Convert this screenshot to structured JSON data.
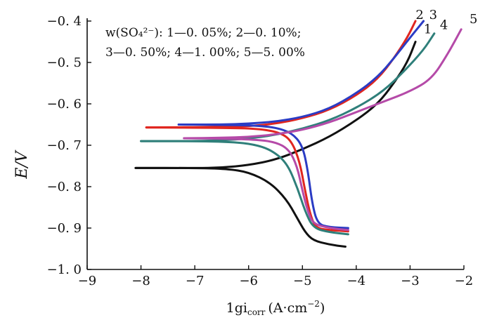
{
  "chart_data": {
    "type": "line",
    "xlabel": {
      "main": "1gi",
      "subscript": "corr",
      "unit": "(A·cm",
      "unit_sup": "−2",
      "unit_end": ")"
    },
    "ylabel": "E/V",
    "xlim": [
      -9,
      -2
    ],
    "ylim": [
      -1.0,
      -0.4
    ],
    "x_ticks": [
      -9,
      -8,
      -7,
      -6,
      -5,
      -4,
      -3,
      -2
    ],
    "x_tick_labels": [
      "−9",
      "−8",
      "−7",
      "−6",
      "−5",
      "−4",
      "−3",
      "−2"
    ],
    "y_ticks": [
      -1.0,
      -0.9,
      -0.8,
      -0.7,
      -0.6,
      -0.5,
      -0.4
    ],
    "y_tick_labels": [
      "−1. 0",
      "−0. 9",
      "−0. 8",
      "−0. 7",
      "−0. 6",
      "−0. 5",
      "−0. 4"
    ],
    "grid": false,
    "legend_lines": [
      "w(SO₄²⁻): 1—0. 05%; 2—0. 10%;",
      "3—0. 50%; 4—1. 00%; 5—5. 00%"
    ],
    "series": [
      {
        "name": "1",
        "color": "#111111",
        "anodic": [
          [
            -8.1,
            -0.755
          ],
          [
            -7.0,
            -0.755
          ],
          [
            -6.5,
            -0.754
          ],
          [
            -6.0,
            -0.748
          ],
          [
            -5.5,
            -0.735
          ],
          [
            -5.0,
            -0.71
          ],
          [
            -4.5,
            -0.68
          ],
          [
            -4.0,
            -0.64
          ],
          [
            -3.6,
            -0.6
          ],
          [
            -3.3,
            -0.55
          ],
          [
            -3.05,
            -0.5
          ],
          [
            -2.9,
            -0.45
          ]
        ],
        "cathodic": [
          [
            -8.1,
            -0.755
          ],
          [
            -7.0,
            -0.755
          ],
          [
            -6.4,
            -0.757
          ],
          [
            -6.0,
            -0.765
          ],
          [
            -5.6,
            -0.79
          ],
          [
            -5.3,
            -0.83
          ],
          [
            -5.1,
            -0.875
          ],
          [
            -4.95,
            -0.91
          ],
          [
            -4.8,
            -0.93
          ],
          [
            -4.5,
            -0.94
          ],
          [
            -4.2,
            -0.945
          ]
        ]
      },
      {
        "name": "2",
        "color": "#e0261f",
        "anodic": [
          [
            -7.9,
            -0.657
          ],
          [
            -6.5,
            -0.656
          ],
          [
            -6.0,
            -0.654
          ],
          [
            -5.5,
            -0.648
          ],
          [
            -5.0,
            -0.635
          ],
          [
            -4.5,
            -0.615
          ],
          [
            -4.0,
            -0.58
          ],
          [
            -3.6,
            -0.54
          ],
          [
            -3.3,
            -0.49
          ],
          [
            -3.05,
            -0.44
          ],
          [
            -2.9,
            -0.4
          ]
        ],
        "cathodic": [
          [
            -7.9,
            -0.657
          ],
          [
            -6.5,
            -0.658
          ],
          [
            -5.8,
            -0.66
          ],
          [
            -5.4,
            -0.67
          ],
          [
            -5.2,
            -0.69
          ],
          [
            -5.05,
            -0.74
          ],
          [
            -4.95,
            -0.81
          ],
          [
            -4.85,
            -0.87
          ],
          [
            -4.75,
            -0.9
          ],
          [
            -4.5,
            -0.905
          ],
          [
            -4.15,
            -0.908
          ]
        ]
      },
      {
        "name": "3",
        "color": "#2b3cc4",
        "anodic": [
          [
            -7.3,
            -0.65
          ],
          [
            -6.5,
            -0.65
          ],
          [
            -6.0,
            -0.648
          ],
          [
            -5.5,
            -0.643
          ],
          [
            -5.0,
            -0.632
          ],
          [
            -4.5,
            -0.612
          ],
          [
            -4.0,
            -0.575
          ],
          [
            -3.6,
            -0.535
          ],
          [
            -3.3,
            -0.49
          ],
          [
            -3.0,
            -0.44
          ],
          [
            -2.75,
            -0.4
          ]
        ],
        "cathodic": [
          [
            -7.3,
            -0.65
          ],
          [
            -6.5,
            -0.651
          ],
          [
            -5.9,
            -0.652
          ],
          [
            -5.5,
            -0.657
          ],
          [
            -5.2,
            -0.67
          ],
          [
            -5.0,
            -0.7
          ],
          [
            -4.9,
            -0.76
          ],
          [
            -4.82,
            -0.84
          ],
          [
            -4.72,
            -0.89
          ],
          [
            -4.5,
            -0.898
          ],
          [
            -4.15,
            -0.9
          ]
        ]
      },
      {
        "name": "4",
        "color": "#2f7f7a",
        "anodic": [
          [
            -8.0,
            -0.69
          ],
          [
            -7.0,
            -0.69
          ],
          [
            -6.5,
            -0.688
          ],
          [
            -6.0,
            -0.684
          ],
          [
            -5.5,
            -0.675
          ],
          [
            -5.0,
            -0.66
          ],
          [
            -4.5,
            -0.64
          ],
          [
            -4.0,
            -0.61
          ],
          [
            -3.5,
            -0.57
          ],
          [
            -3.1,
            -0.52
          ],
          [
            -2.75,
            -0.47
          ],
          [
            -2.55,
            -0.43
          ]
        ],
        "cathodic": [
          [
            -8.0,
            -0.69
          ],
          [
            -7.0,
            -0.69
          ],
          [
            -6.3,
            -0.692
          ],
          [
            -5.9,
            -0.698
          ],
          [
            -5.6,
            -0.71
          ],
          [
            -5.3,
            -0.74
          ],
          [
            -5.1,
            -0.8
          ],
          [
            -4.95,
            -0.86
          ],
          [
            -4.8,
            -0.9
          ],
          [
            -4.5,
            -0.91
          ],
          [
            -4.15,
            -0.915
          ]
        ]
      },
      {
        "name": "5",
        "color": "#b54aa8",
        "anodic": [
          [
            -7.2,
            -0.683
          ],
          [
            -6.5,
            -0.682
          ],
          [
            -6.0,
            -0.68
          ],
          [
            -5.5,
            -0.674
          ],
          [
            -5.0,
            -0.663
          ],
          [
            -4.5,
            -0.645
          ],
          [
            -4.0,
            -0.62
          ],
          [
            -3.5,
            -0.595
          ],
          [
            -3.0,
            -0.57
          ],
          [
            -2.6,
            -0.54
          ],
          [
            -2.3,
            -0.48
          ],
          [
            -2.05,
            -0.42
          ]
        ],
        "cathodic": [
          [
            -7.2,
            -0.683
          ],
          [
            -6.5,
            -0.684
          ],
          [
            -5.9,
            -0.686
          ],
          [
            -5.5,
            -0.692
          ],
          [
            -5.25,
            -0.71
          ],
          [
            -5.1,
            -0.75
          ],
          [
            -5.0,
            -0.81
          ],
          [
            -4.9,
            -0.86
          ],
          [
            -4.8,
            -0.89
          ],
          [
            -4.5,
            -0.9
          ],
          [
            -4.15,
            -0.905
          ]
        ]
      }
    ],
    "series_label_anchor": [
      [
        -2.85,
        -0.44
      ],
      [
        -3.0,
        -0.405
      ],
      [
        -2.75,
        -0.405
      ],
      [
        -2.55,
        -0.43
      ],
      [
        -2.0,
        -0.415
      ]
    ]
  }
}
